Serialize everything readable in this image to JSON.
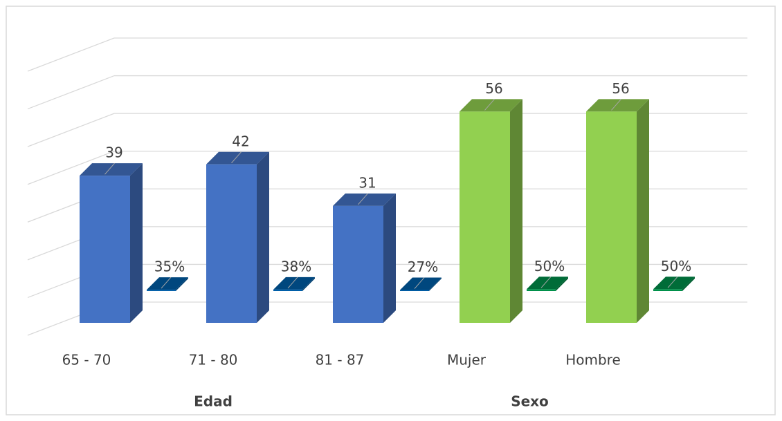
{
  "chart_data": {
    "type": "bar3d",
    "categories": [
      "65 - 70",
      "71 - 80",
      "81 - 87",
      "Mujer",
      "Hombre"
    ],
    "groups": [
      {
        "label": "Edad",
        "size": 3
      },
      {
        "label": "Sexo",
        "size": 2
      }
    ],
    "series": [
      {
        "values": [
          39,
          42,
          31,
          56,
          56
        ],
        "colors": [
          "#4472c4",
          "#4472c4",
          "#4472c4",
          "#92d050",
          "#92d050"
        ]
      },
      {
        "values": [
          0.35,
          0.38,
          0.27,
          0.5,
          0.5
        ],
        "value_labels": [
          "35%",
          "38%",
          "27%",
          "50%",
          "50%"
        ],
        "colors": [
          "#005ea8",
          "#005ea8",
          "#005ea8",
          "#00904a",
          "#00904a"
        ]
      }
    ],
    "ylim": [
      0,
      70
    ],
    "yticks": [
      0,
      10,
      20,
      30,
      40,
      50,
      60,
      70
    ],
    "grid": true
  }
}
